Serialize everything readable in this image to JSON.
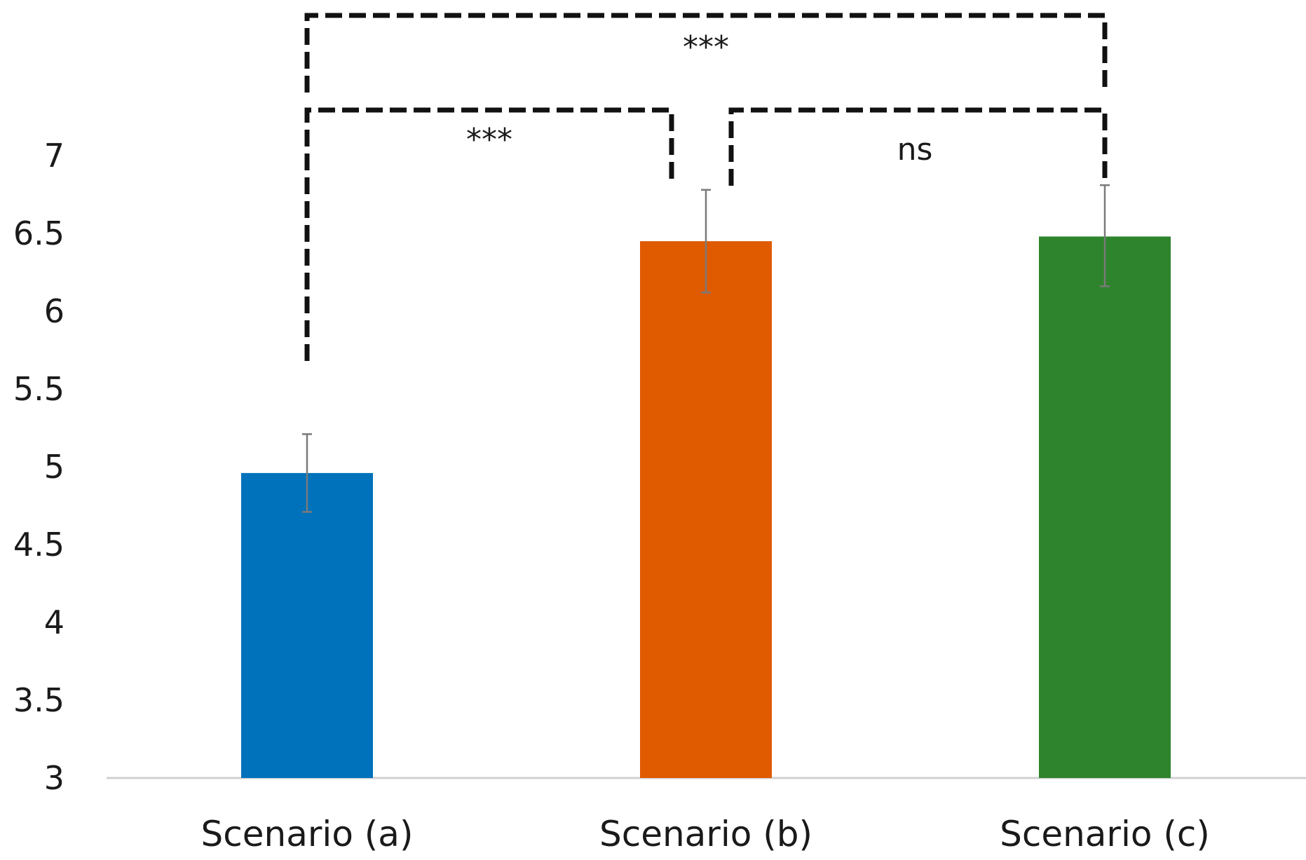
{
  "chart_data": {
    "type": "bar",
    "title": "",
    "xlabel": "",
    "ylabel": "",
    "ylim": [
      3,
      7
    ],
    "yticks": [
      "3",
      "3.5",
      "4",
      "4.5",
      "5",
      "5.5",
      "6",
      "6.5",
      "7"
    ],
    "grid": false,
    "categories": [
      "Scenario (a)",
      "Scenario (b)",
      "Scenario (c)"
    ],
    "values": [
      4.96,
      6.45,
      6.48
    ],
    "error": [
      {
        "low": 4.71,
        "high": 5.21
      },
      {
        "low": 6.12,
        "high": 6.78
      },
      {
        "low": 6.16,
        "high": 6.81
      }
    ],
    "colors": [
      "#0072bb",
      "#e05a00",
      "#2e842c"
    ],
    "significance": [
      {
        "from": 0,
        "to": 1,
        "label": "***"
      },
      {
        "from": 1,
        "to": 2,
        "label": "ns"
      },
      {
        "from": 0,
        "to": 2,
        "label": "***"
      }
    ]
  }
}
